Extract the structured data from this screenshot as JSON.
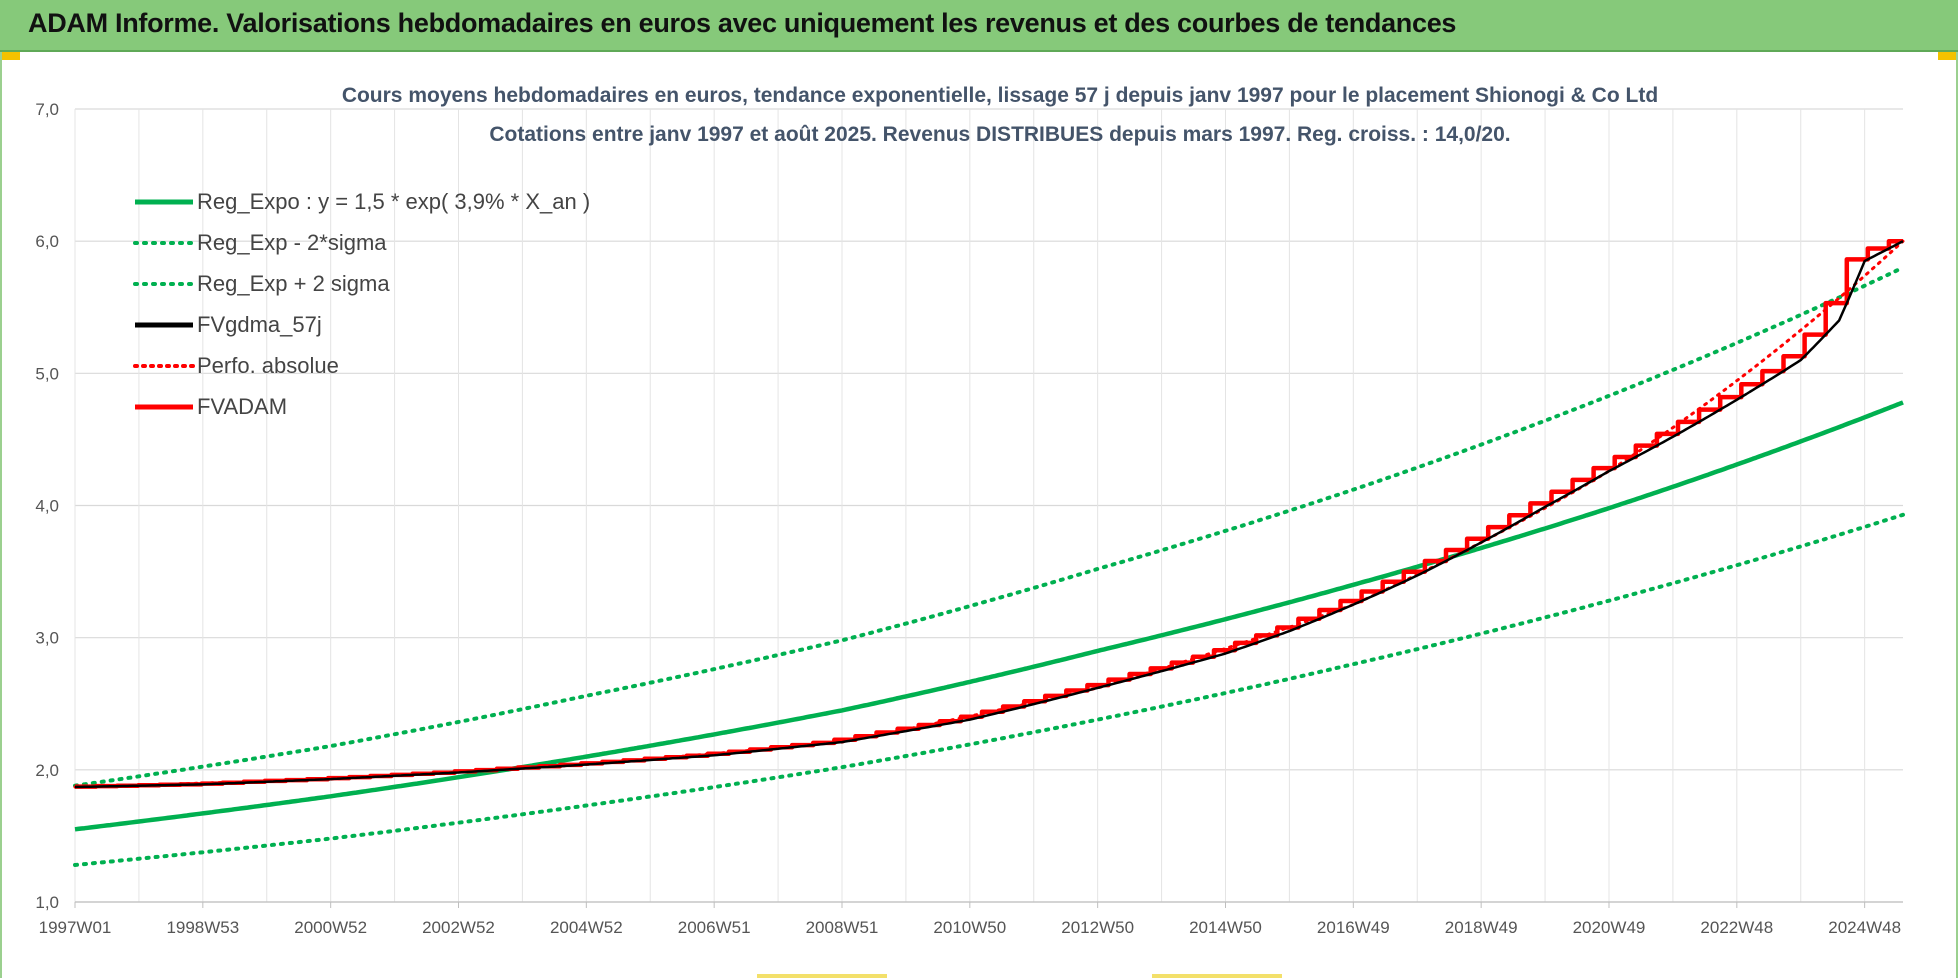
{
  "header": {
    "title": "ADAM Informe. Valorisations hebdomadaires en euros avec uniquement les revenus et des courbes de tendances"
  },
  "colors": {
    "header_bg": "#86c97a",
    "reg_green": "#00b050",
    "fv_black": "#000000",
    "adam_red": "#ff0000",
    "title_text": "#44546a"
  },
  "chart_data": {
    "type": "line",
    "title": "Cours moyens hebdomadaires en euros, tendance exponentielle, lissage 57 j depuis janv 1997 pour le placement Shionogi & Co Ltd",
    "subtitle": "Cotations entre janv 1997 et août 2025. Revenus DISTRIBUES depuis mars 1997. Reg. croiss. : 14,0/20.",
    "xlabel": "",
    "ylabel": "",
    "xlim": [
      1997.0,
      2025.6
    ],
    "ylim": [
      1.0,
      7.0
    ],
    "y_ticks": [
      "1,0",
      "2,0",
      "3,0",
      "4,0",
      "5,0",
      "6,0",
      "7,0"
    ],
    "x_ticks": [
      {
        "label": "1997W01",
        "x": 1997.0
      },
      {
        "label": "1998W53",
        "x": 1999.0
      },
      {
        "label": "2000W52",
        "x": 2001.0
      },
      {
        "label": "2002W52",
        "x": 2003.0
      },
      {
        "label": "2004W52",
        "x": 2005.0
      },
      {
        "label": "2006W51",
        "x": 2007.0
      },
      {
        "label": "2008W51",
        "x": 2009.0
      },
      {
        "label": "2010W50",
        "x": 2011.0
      },
      {
        "label": "2012W50",
        "x": 2013.0
      },
      {
        "label": "2014W50",
        "x": 2015.0
      },
      {
        "label": "2016W49",
        "x": 2017.0
      },
      {
        "label": "2018W49",
        "x": 2019.0
      },
      {
        "label": "2020W49",
        "x": 2021.0
      },
      {
        "label": "2022W48",
        "x": 2023.0
      },
      {
        "label": "2024W48",
        "x": 2025.0
      }
    ],
    "grid": true,
    "legend_position": "top-left",
    "series": [
      {
        "name": "Reg_Expo : y = 1,5 * exp( 3,9% *  X_an )",
        "style": "solid-green",
        "x": [
          1997.0,
          2001.0,
          2005.0,
          2009.0,
          2013.0,
          2017.0,
          2021.0,
          2025.6
        ],
        "y": [
          1.55,
          1.8,
          2.1,
          2.45,
          2.9,
          3.4,
          3.98,
          4.78
        ]
      },
      {
        "name": "Reg_Exp - 2*sigma",
        "style": "dotted-green",
        "x": [
          1997.0,
          2001.0,
          2005.0,
          2009.0,
          2013.0,
          2017.0,
          2021.0,
          2025.6
        ],
        "y": [
          1.28,
          1.48,
          1.73,
          2.02,
          2.38,
          2.8,
          3.28,
          3.93
        ]
      },
      {
        "name": "Reg_Exp + 2 sigma",
        "style": "dotted-green",
        "x": [
          1997.0,
          2001.0,
          2005.0,
          2009.0,
          2013.0,
          2017.0,
          2021.0,
          2025.6
        ],
        "y": [
          1.88,
          2.18,
          2.56,
          2.98,
          3.52,
          4.12,
          4.83,
          5.8
        ]
      },
      {
        "name": "FVgdma_57j",
        "style": "solid-black",
        "x": [
          1997.0,
          1999.0,
          2001.0,
          2003.0,
          2005.0,
          2007.0,
          2009.0,
          2011.0,
          2013.0,
          2015.0,
          2016.0,
          2017.0,
          2018.0,
          2019.0,
          2020.0,
          2021.0,
          2022.0,
          2023.0,
          2024.0,
          2024.6,
          2025.0,
          2025.6
        ],
        "y": [
          1.87,
          1.89,
          1.93,
          1.98,
          2.04,
          2.11,
          2.21,
          2.38,
          2.62,
          2.88,
          3.05,
          3.25,
          3.47,
          3.72,
          3.99,
          4.26,
          4.52,
          4.8,
          5.1,
          5.4,
          5.85,
          6.0
        ]
      },
      {
        "name": "Perfo. absolue",
        "style": "dotted-red",
        "x": [
          1997.0,
          2001.0,
          2005.0,
          2009.0,
          2013.0,
          2017.0,
          2021.0,
          2025.6
        ],
        "y": [
          1.87,
          1.93,
          2.04,
          2.21,
          2.62,
          3.25,
          4.26,
          6.0
        ]
      },
      {
        "name": "FVADAM",
        "style": "step-red",
        "x": [
          1997.0,
          1999.0,
          2001.0,
          2003.0,
          2005.0,
          2007.0,
          2009.0,
          2011.0,
          2013.0,
          2015.0,
          2016.0,
          2017.0,
          2018.0,
          2019.0,
          2020.0,
          2021.0,
          2022.0,
          2023.0,
          2024.0,
          2024.6,
          2025.0,
          2025.6
        ],
        "y": [
          1.87,
          1.89,
          1.93,
          1.98,
          2.04,
          2.11,
          2.21,
          2.38,
          2.62,
          2.88,
          3.05,
          3.25,
          3.47,
          3.72,
          3.99,
          4.26,
          4.52,
          4.8,
          5.1,
          5.4,
          5.85,
          6.0
        ]
      }
    ]
  }
}
